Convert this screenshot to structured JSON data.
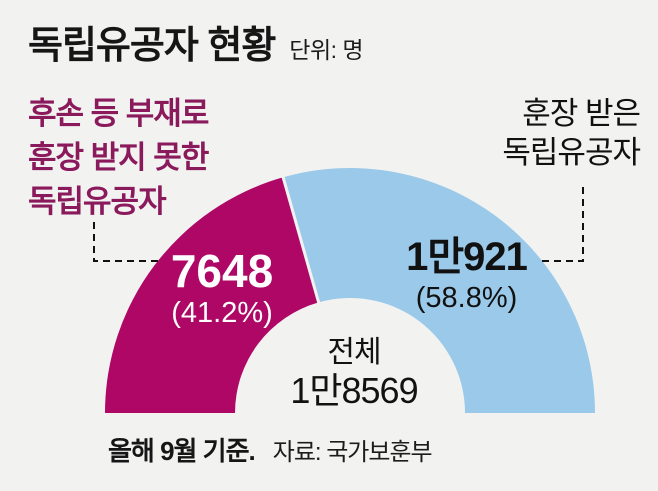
{
  "title": {
    "text": "독립유공자 현황",
    "unit": "단위: 명"
  },
  "labels": {
    "left": {
      "lines": [
        "후손 등 부재로",
        "훈장 받지 못한",
        "독립유공자"
      ],
      "color": "#8b1a5c"
    },
    "right": {
      "lines": [
        "훈장 받은",
        "독립유공자"
      ],
      "color": "#111111"
    }
  },
  "chart_data": {
    "type": "pie",
    "variant": "semicircle-donut",
    "title": "독립유공자 현황",
    "unit": "명",
    "background": "#f2f3f1",
    "total": {
      "label": "전체",
      "value": 18569,
      "value_text": "1만8569"
    },
    "slices": [
      {
        "name": "후손 등 부재로 훈장 받지 못한 독립유공자",
        "value": 7648,
        "value_text": "7648",
        "percent": 41.2,
        "percent_text": "(41.2%)",
        "color": "#ae0766",
        "text_color": "#ffffff"
      },
      {
        "name": "훈장 받은 독립유공자",
        "value": 10921,
        "value_text": "1만921",
        "percent": 58.8,
        "percent_text": "(58.8%)",
        "color": "#9bc9e9",
        "text_color": "#111111"
      }
    ]
  },
  "footer": {
    "basis": "올해 9월 기준.",
    "source": "자료: 국가보훈부"
  }
}
